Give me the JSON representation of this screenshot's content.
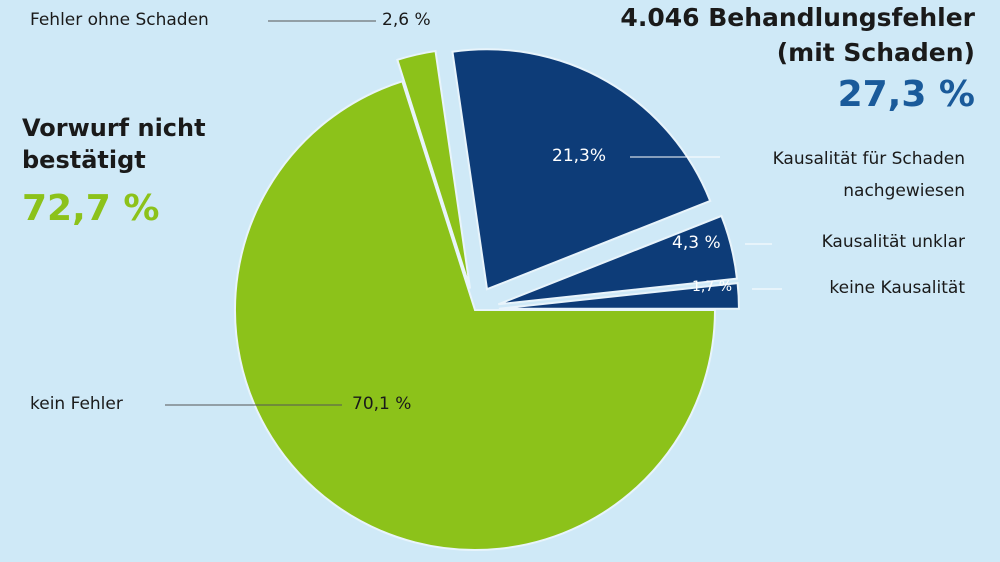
{
  "chart_data": {
    "type": "pie",
    "categories": [
      "kein Fehler",
      "Fehler ohne Schaden",
      "Kausalität für Schaden nachgewiesen",
      "Kausalität unklar",
      "keine Kausalität"
    ],
    "values": [
      70.1,
      2.6,
      21.3,
      4.3,
      1.7
    ],
    "value_labels": [
      "70,1 %",
      "2,6 %",
      "21,3%",
      "4,3 %",
      "1,7 %"
    ],
    "colors": [
      "#8cc21a",
      "#8cc21a",
      "#0d3c78",
      "#0d3c78",
      "#0d3c78"
    ],
    "groups": [
      {
        "name": "Vorwurf nicht bestätigt",
        "value": 72.7,
        "value_label": "72,7 %",
        "color": "#8cc21a"
      },
      {
        "name": "4.046 Behandlungsfehler (mit Schaden)",
        "value": 27.3,
        "value_label": "27,3 %",
        "color": "#1a5a9a"
      }
    ]
  }
}
